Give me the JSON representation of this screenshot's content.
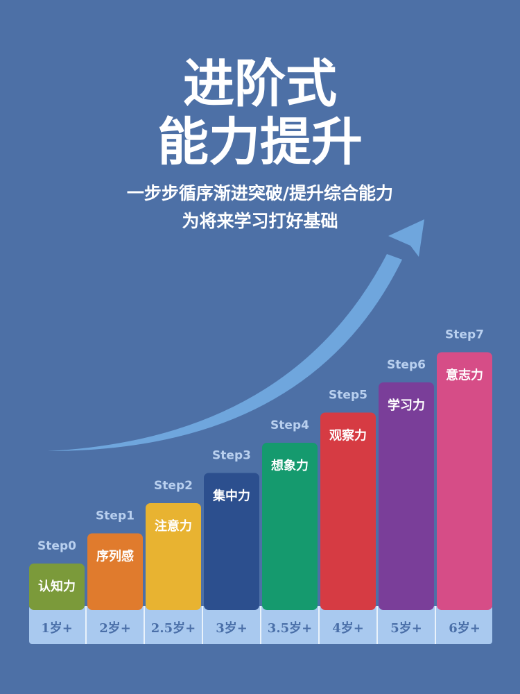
{
  "header": {
    "title_line1": "进阶式",
    "title_line2": "能力提升",
    "subtitle_line1": "一步步循序渐进突破/提升综合能力",
    "subtitle_line2": "为将来学习打好基础"
  },
  "colors": {
    "background": "#4d70a6",
    "arrow": "#6fa6dd",
    "step_label": "#b9d0ef",
    "age_band": "#a9c9ef",
    "age_text": "#4a6fa8"
  },
  "chart_data": {
    "type": "bar",
    "categories": [
      "1岁+",
      "2岁+",
      "2.5岁+",
      "3岁+",
      "3.5岁+",
      "4岁+",
      "5岁+",
      "6岁+"
    ],
    "step_labels": [
      "Step0",
      "Step1",
      "Step2",
      "Step3",
      "Step4",
      "Step5",
      "Step6",
      "Step7"
    ],
    "bar_labels": [
      "认知力",
      "序列感",
      "注意力",
      "集中力",
      "想象力",
      "观察力",
      "学习力",
      "意志力"
    ],
    "values": [
      1,
      2,
      3,
      4,
      5,
      6,
      7,
      8
    ],
    "colors": [
      "#7b9a3a",
      "#e07b2d",
      "#e8b331",
      "#2c4f8e",
      "#159a6e",
      "#d63b43",
      "#7a3e99",
      "#d64d87"
    ],
    "title": "",
    "xlabel": "",
    "ylabel": ""
  }
}
